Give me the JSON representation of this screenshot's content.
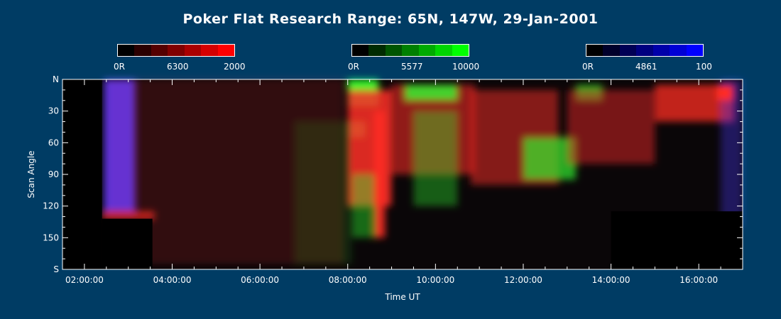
{
  "chart_data": {
    "type": "heatmap",
    "title": "Poker Flat Research Range: 65N, 147W, 29-Jan-2001",
    "xlabel": "Time UT",
    "ylabel": "Scan Angle",
    "xlim_hours": [
      1.5,
      17.0
    ],
    "x_ticks": [
      {
        "hour": 2,
        "label": "02:00:00"
      },
      {
        "hour": 4,
        "label": "04:00:00"
      },
      {
        "hour": 6,
        "label": "06:00:00"
      },
      {
        "hour": 8,
        "label": "08:00:00"
      },
      {
        "hour": 10,
        "label": "10:00:00"
      },
      {
        "hour": 12,
        "label": "12:00:00"
      },
      {
        "hour": 14,
        "label": "14:00:00"
      },
      {
        "hour": 16,
        "label": "16:00:00"
      }
    ],
    "ylim": [
      0,
      180
    ],
    "y_ticks": [
      {
        "value": 0,
        "label": "N"
      },
      {
        "value": 30,
        "label": "30"
      },
      {
        "value": 60,
        "label": "60"
      },
      {
        "value": 90,
        "label": "90"
      },
      {
        "value": 120,
        "label": "120"
      },
      {
        "value": 150,
        "label": "150"
      },
      {
        "value": 180,
        "label": "S"
      }
    ],
    "colorbars": [
      {
        "channel": "red",
        "min_label": "0R",
        "wavelength": "6300",
        "max_label": "2000",
        "max_color": "#ff0000"
      },
      {
        "channel": "green",
        "min_label": "0R",
        "wavelength": "5577",
        "max_label": "10000",
        "max_color": "#00ff00"
      },
      {
        "channel": "blue",
        "min_label": "0R",
        "wavelength": "4861",
        "max_label": "100",
        "max_color": "#0000ff"
      }
    ],
    "blobs": [
      {
        "channel": "blue",
        "t0": 2.45,
        "t1": 3.15,
        "a0": 0,
        "a1": 125,
        "level": 0.95
      },
      {
        "channel": "red",
        "t0": 2.4,
        "t1": 3.6,
        "a0": 125,
        "a1": 133,
        "level": 0.7
      },
      {
        "channel": "red",
        "t0": 2.5,
        "t1": 7.9,
        "a0": 0,
        "a1": 175,
        "level": 0.16
      },
      {
        "channel": "green",
        "t0": 6.8,
        "t1": 8.1,
        "a0": 40,
        "a1": 175,
        "level": 0.12
      },
      {
        "channel": "green",
        "t0": 8.0,
        "t1": 8.7,
        "a0": 0,
        "a1": 25,
        "level": 0.95
      },
      {
        "channel": "green",
        "t0": 8.0,
        "t1": 8.4,
        "a0": 40,
        "a1": 55,
        "level": 0.85
      },
      {
        "channel": "red",
        "t0": 8.0,
        "t1": 9.0,
        "a0": 10,
        "a1": 120,
        "level": 0.85
      },
      {
        "channel": "red",
        "t0": 8.6,
        "t1": 8.85,
        "a0": 30,
        "a1": 150,
        "level": 0.9
      },
      {
        "channel": "green",
        "t0": 8.1,
        "t1": 8.6,
        "a0": 90,
        "a1": 150,
        "level": 0.4
      },
      {
        "channel": "red",
        "t0": 9.0,
        "t1": 10.9,
        "a0": 5,
        "a1": 90,
        "level": 0.55
      },
      {
        "channel": "green",
        "t0": 9.3,
        "t1": 10.5,
        "a0": 5,
        "a1": 20,
        "level": 0.8
      },
      {
        "channel": "green",
        "t0": 9.5,
        "t1": 10.5,
        "a0": 30,
        "a1": 120,
        "level": 0.35
      },
      {
        "channel": "red",
        "t0": 10.8,
        "t1": 12.8,
        "a0": 10,
        "a1": 100,
        "level": 0.5
      },
      {
        "channel": "green",
        "t0": 12.0,
        "t1": 13.2,
        "a0": 55,
        "a1": 95,
        "level": 0.65
      },
      {
        "channel": "green",
        "t0": 13.2,
        "t1": 13.8,
        "a0": 5,
        "a1": 20,
        "level": 0.6
      },
      {
        "channel": "red",
        "t0": 13.0,
        "t1": 15.0,
        "a0": 10,
        "a1": 80,
        "level": 0.45
      },
      {
        "channel": "red",
        "t0": 15.0,
        "t1": 16.8,
        "a0": 5,
        "a1": 40,
        "level": 0.75
      },
      {
        "channel": "blue",
        "t0": 16.5,
        "t1": 17.0,
        "a0": 0,
        "a1": 140,
        "level": 0.35
      },
      {
        "channel": "red",
        "t0": 16.4,
        "t1": 16.8,
        "a0": 5,
        "a1": 20,
        "level": 1.0
      }
    ],
    "no_data": [
      {
        "t0": 1.5,
        "t1": 2.4,
        "a0": 0,
        "a1": 180
      },
      {
        "t0": 2.4,
        "t1": 3.55,
        "a0": 132,
        "a1": 180
      },
      {
        "t0": 14.0,
        "t1": 17.0,
        "a0": 125,
        "a1": 180
      }
    ],
    "grid": false
  }
}
